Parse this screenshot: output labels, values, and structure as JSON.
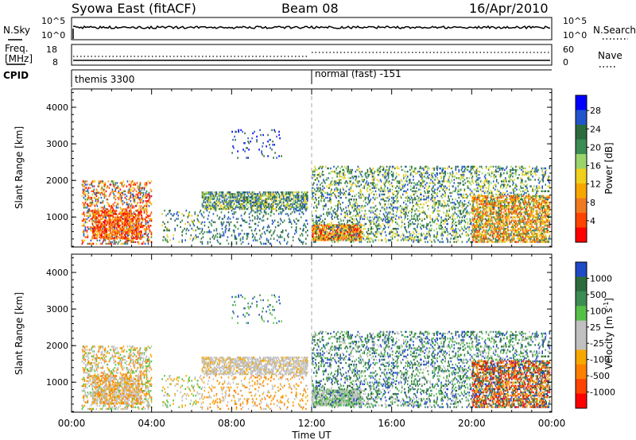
{
  "header": {
    "site": "Syowa East (fitACF)",
    "beam": "Beam 08",
    "date": "16/Apr/2010"
  },
  "panels": {
    "nsky": {
      "label": "N.Sky",
      "ticks": [
        "10^5",
        "10^0"
      ],
      "right_label": "N.Search",
      "right_ticks": [
        "10^5",
        "10^0"
      ]
    },
    "freq": {
      "label_line1": "Freq.",
      "label_line2": "[MHz]",
      "ticks": [
        "18",
        "8"
      ],
      "right_label": "Nave",
      "right_ticks": [
        "60",
        "0"
      ]
    },
    "cpid": {
      "label": "CPID",
      "modes": [
        {
          "name": "themis 3300",
          "start": "00:00"
        },
        {
          "name": "normal (fast) -151",
          "start": "12:00"
        }
      ]
    }
  },
  "chart_data": [
    {
      "type": "heatmap",
      "name": "power",
      "ylabel": "Slant Range [km]",
      "ylim": [
        180,
        4500
      ],
      "yticks": [
        "1000",
        "2000",
        "3000",
        "4000"
      ],
      "xlim": [
        "00:00",
        "24:00"
      ],
      "colorbar": {
        "label": "Power [dB]",
        "ticks": [
          "4",
          "8",
          "12",
          "16",
          "20",
          "24",
          "28"
        ],
        "colors": [
          "#0000ff",
          "#2255cc",
          "#2d6b3e",
          "#3c8c53",
          "#9bd46b",
          "#f0cf1d",
          "#f7a800",
          "#f07a20",
          "#ff4400",
          "#ff0000"
        ]
      }
    },
    {
      "type": "heatmap",
      "name": "velocity",
      "ylabel": "Slant Range [km]",
      "ylim": [
        180,
        4500
      ],
      "yticks": [
        "1000",
        "2000",
        "3000",
        "4000"
      ],
      "xlim": [
        "00:00",
        "24:00"
      ],
      "colorbar": {
        "label": "Velocity [m s",
        "label_sup": "-1",
        "label_end": "]",
        "ticks": [
          "1000",
          "500",
          "100",
          "25",
          "-25",
          "-100",
          "-500",
          "-1000"
        ],
        "colors": [
          "#2049c8",
          "#2d6b3e",
          "#3c8c53",
          "#55c048",
          "#c0c0c0",
          "#c0c0c0",
          "#f7a800",
          "#ff8000",
          "#ff4400",
          "#ff0000"
        ]
      }
    }
  ],
  "xaxis": {
    "label": "Time UT",
    "ticks": [
      "00:00",
      "04:00",
      "08:00",
      "12:00",
      "16:00",
      "20:00",
      "00:00"
    ]
  }
}
